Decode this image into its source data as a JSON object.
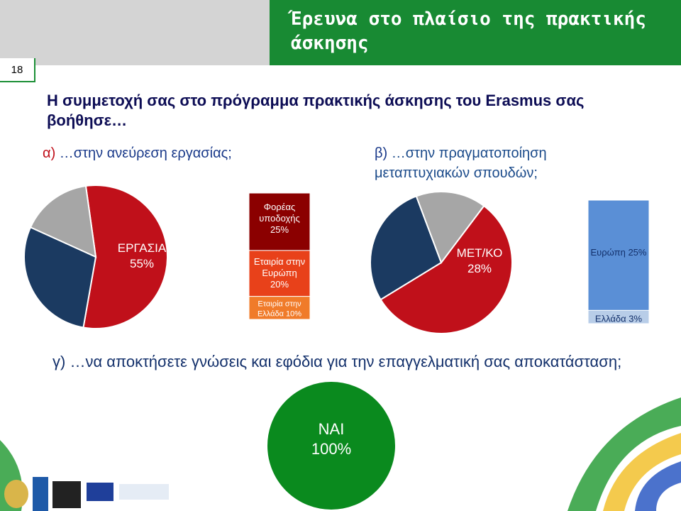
{
  "page_number": "18",
  "slide_title": "Έρευνα στο πλαίσιο της πρακτικής άσκησης",
  "question": "Η συμμετοχή σας στο πρόγραμμα πρακτικής άσκησης του Erasmus σας βοήθησε…",
  "sub_a": {
    "marker": "α)",
    "text": "…στην ανεύρεση εργασίας;"
  },
  "sub_b": {
    "marker": "β)",
    "text": "…στην πραγματοποίηση μεταπτυχιακών σπουδών;"
  },
  "sub_g": {
    "marker": "γ)",
    "text": "…να αποκτήσετε γνώσεις και εφόδια για την επαγγελματική σας αποκατάσταση;"
  },
  "colors": {
    "red": "#c0101a",
    "navy": "#1b3a61",
    "gray": "#a6a6a6",
    "green": "#0a8a1e",
    "blue": "#5a8fd6",
    "dark_red": "#8b0000",
    "orange": "#e8411a",
    "orange2": "#f07b2a"
  },
  "chart_data": [
    {
      "type": "pie",
      "slices": [
        {
          "label": "ΕΡΓΑΣΙΑ 55%",
          "value": 55,
          "color": "#c0101a"
        },
        {
          "label": "",
          "value": 29,
          "color": "#1b3a61"
        },
        {
          "label": "",
          "value": 16,
          "color": "#a6a6a6"
        }
      ]
    },
    {
      "type": "bar",
      "stacked": true,
      "segments": [
        {
          "label": "Φορέας υποδοχής 25%",
          "value": 25,
          "color": "#8b0000"
        },
        {
          "label": "Εταιρία στην Ευρώπη 20%",
          "value": 20,
          "color": "#e8411a"
        },
        {
          "label": "Εταιρία στην Ελλάδα 10%",
          "value": 10,
          "color": "#f07b2a"
        }
      ]
    },
    {
      "type": "pie",
      "slices": [
        {
          "label": "",
          "value": 56,
          "color": "#c0101a"
        },
        {
          "label": "ΜΕΤ/ΚΟ 28%",
          "value": 28,
          "color": "#1b3a61"
        },
        {
          "label": "",
          "value": 16,
          "color": "#a6a6a6"
        }
      ]
    },
    {
      "type": "bar",
      "stacked": true,
      "segments": [
        {
          "label": "Ευρώπη 25%",
          "value": 25,
          "color": "#5a8fd6"
        },
        {
          "label": "Ελλάδα 3%",
          "value": 3,
          "color": "#b8cde8"
        }
      ]
    },
    {
      "type": "pie",
      "slices": [
        {
          "label": "ΝΑΙ 100%",
          "value": 100,
          "color": "#0a8a1e"
        }
      ]
    }
  ]
}
